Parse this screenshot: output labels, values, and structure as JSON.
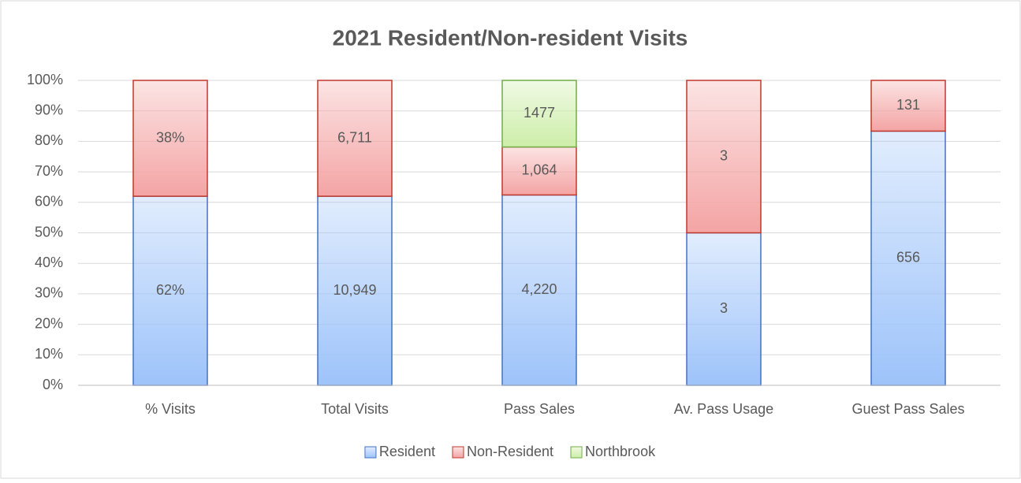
{
  "chart_data": {
    "type": "bar",
    "stacking": "percent",
    "title": "2021 Resident/Non-resident Visits",
    "categories": [
      "% Visits",
      "Total Visits",
      "Pass Sales",
      "Av. Pass Usage",
      "Guest Pass Sales"
    ],
    "series": [
      {
        "name": "Resident",
        "color": "#9dc3fa",
        "edgecolor": "#4472c4",
        "values": [
          62,
          10949,
          4220,
          3,
          656
        ],
        "value_labels": [
          "62%",
          "10,949",
          "4,220",
          "3",
          "656"
        ]
      },
      {
        "name": "Non-Resident",
        "color": "#f4a4a4",
        "edgecolor": "#c0392b",
        "values": [
          38,
          6711,
          1064,
          3,
          131
        ],
        "value_labels": [
          "38%",
          "6,711",
          "1,064",
          "3",
          "131"
        ]
      },
      {
        "name": "Northbrook",
        "color": "#cdeea8",
        "edgecolor": "#70ad47",
        "values": [
          null,
          null,
          1477,
          null,
          null
        ]
      }
    ],
    "ylim": [
      0,
      100
    ],
    "yticks": [
      {
        "value": 0,
        "label": "0%"
      },
      {
        "value": 10,
        "label": "10%"
      },
      {
        "value": 20,
        "label": "20%"
      },
      {
        "value": 30,
        "label": "30%"
      },
      {
        "value": 40,
        "label": "40%"
      },
      {
        "value": 50,
        "label": "50%"
      },
      {
        "value": 60,
        "label": "60%"
      },
      {
        "value": 70,
        "label": "70%"
      },
      {
        "value": 80,
        "label": "80%"
      },
      {
        "value": 90,
        "label": "90%"
      },
      {
        "value": 100,
        "label": "100%"
      }
    ],
    "grid": true,
    "legend": "bottom"
  }
}
